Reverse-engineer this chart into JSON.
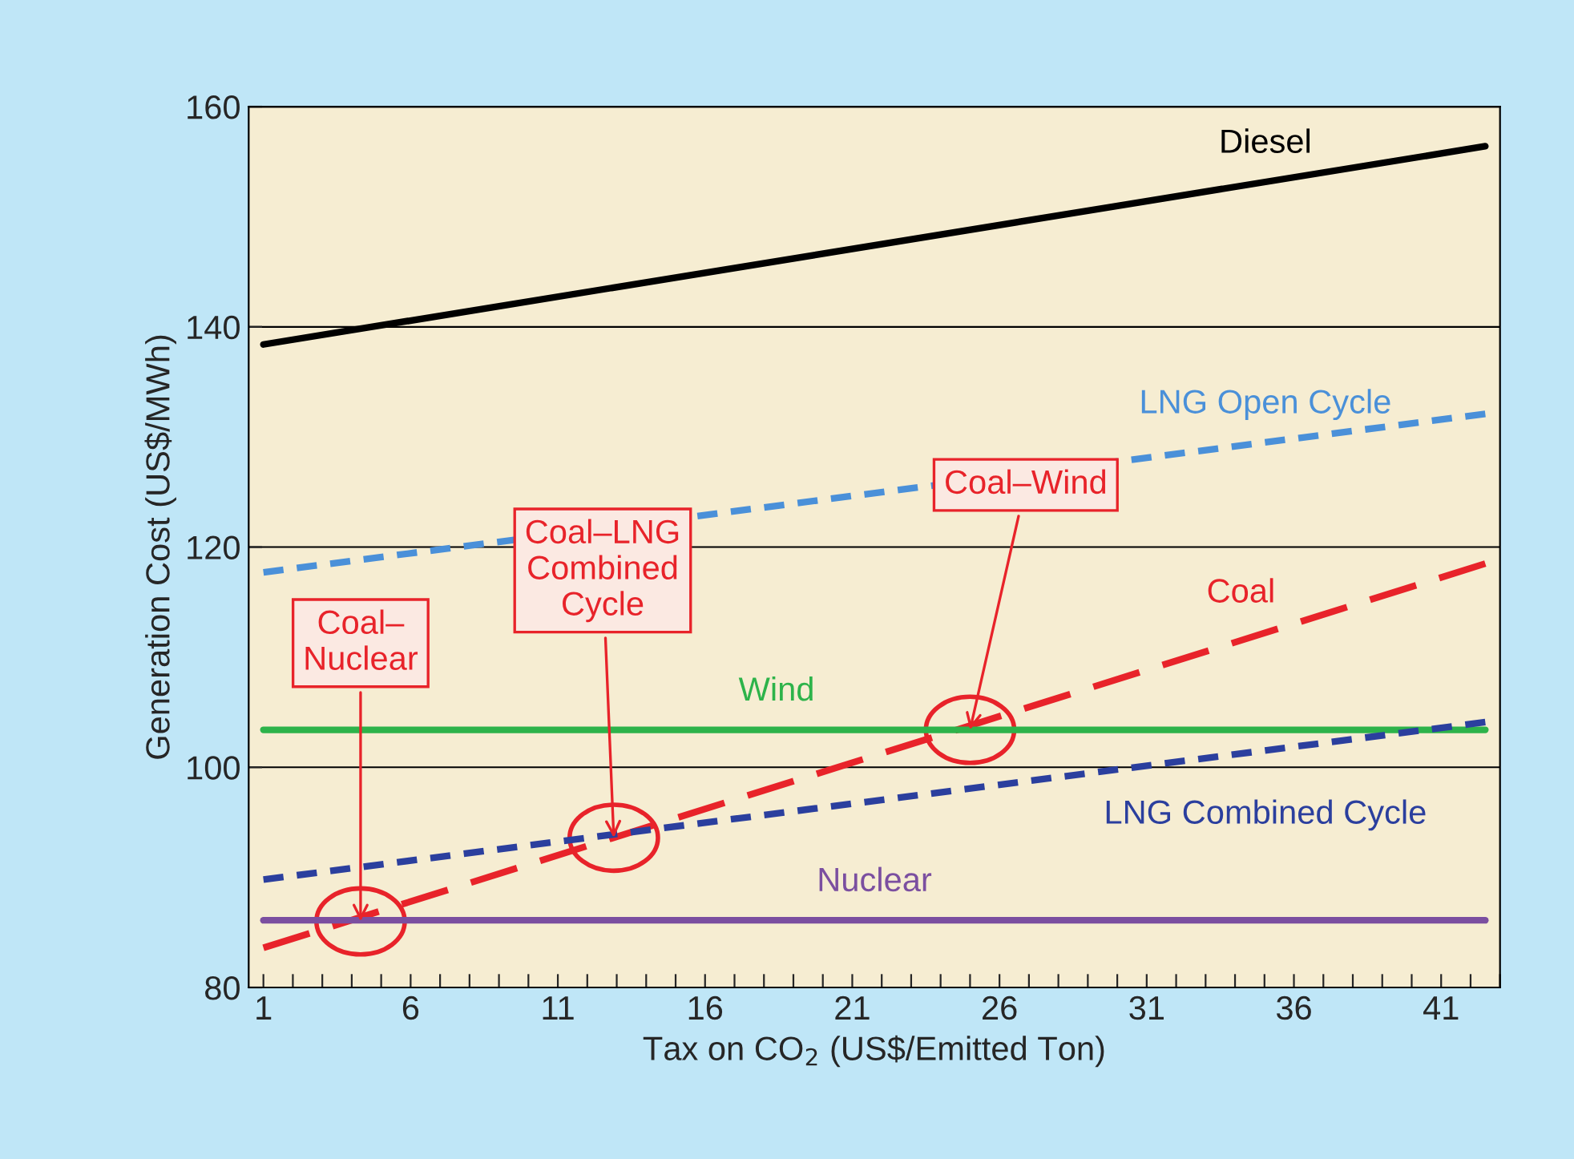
{
  "chart_data": {
    "type": "line",
    "xlabel": "Tax on CO$_{2}$ (US$/Emitted Ton)",
    "ylabel": "Generation Cost (US$/MWh)",
    "xlim": [
      0.5,
      43
    ],
    "ylim": [
      80,
      160
    ],
    "xticks": [
      1,
      {
        "value": 2,
        "label": null
      },
      {
        "value": 3,
        "label": null
      },
      {
        "value": 4,
        "label": null
      },
      {
        "value": 5,
        "label": null
      },
      6,
      {
        "value": 7,
        "label": null
      },
      {
        "value": 8,
        "label": null
      },
      {
        "value": 9,
        "label": null
      },
      {
        "value": 10,
        "label": null
      },
      11,
      {
        "value": 12,
        "label": null
      },
      {
        "value": 13,
        "label": null
      },
      {
        "value": 14,
        "label": null
      },
      {
        "value": 15,
        "label": null
      },
      16,
      {
        "value": 17,
        "label": null
      },
      {
        "value": 18,
        "label": null
      },
      {
        "value": 19,
        "label": null
      },
      {
        "value": 20,
        "label": null
      },
      21,
      {
        "value": 22,
        "label": null
      },
      {
        "value": 23,
        "label": null
      },
      {
        "value": 24,
        "label": null
      },
      {
        "value": 25,
        "label": null
      },
      26,
      {
        "value": 27,
        "label": null
      },
      {
        "value": 28,
        "label": null
      },
      {
        "value": 29,
        "label": null
      },
      {
        "value": 30,
        "label": null
      },
      31,
      {
        "value": 32,
        "label": null
      },
      {
        "value": 33,
        "label": null
      },
      {
        "value": 34,
        "label": null
      },
      {
        "value": 35,
        "label": null
      },
      36,
      {
        "value": 37,
        "label": null
      },
      {
        "value": 38,
        "label": null
      },
      {
        "value": 39,
        "label": null
      },
      {
        "value": 40,
        "label": null
      },
      41,
      {
        "value": 42,
        "label": null
      },
      {
        "value": 43,
        "label": null
      }
    ],
    "yticks": [
      80,
      100,
      120,
      140,
      160
    ],
    "grid": "y",
    "legend": false,
    "marker": "none",
    "x": [
      1,
      42.5
    ],
    "series": [
      {
        "name": "Diesel",
        "color": "#000000",
        "line_style": "solid",
        "values": [
          138.4,
          156.4
        ]
      },
      {
        "name": "LNG Open Cycle",
        "color": "#4a90d9",
        "line_style": "dotted",
        "values": [
          117.7,
          132.1
        ]
      },
      {
        "name": "Coal",
        "color": "#e8232a",
        "line_style": "dashed",
        "values": [
          83.6,
          118.5
        ]
      },
      {
        "name": "Wind",
        "color": "#2db34a",
        "line_style": "solid",
        "values": [
          103.4,
          103.4
        ]
      },
      {
        "name": "LNG Combined Cycle",
        "color": "#2b3f9e",
        "line_style": "dotted",
        "values": [
          89.8,
          104.1
        ]
      },
      {
        "name": "Nuclear",
        "color": "#7b4fa0",
        "line_style": "solid",
        "values": [
          86.1,
          86.1
        ]
      }
    ],
    "annotations": [
      {
        "text": "Coal–\nNuclear",
        "x": 4.3,
        "y": 86
      },
      {
        "text": "Coal–LNG\nCombined\nCycle",
        "x": 12.9,
        "y": 93.6
      },
      {
        "text": "Coal–Wind",
        "x": 25,
        "y": 103.4
      }
    ]
  }
}
